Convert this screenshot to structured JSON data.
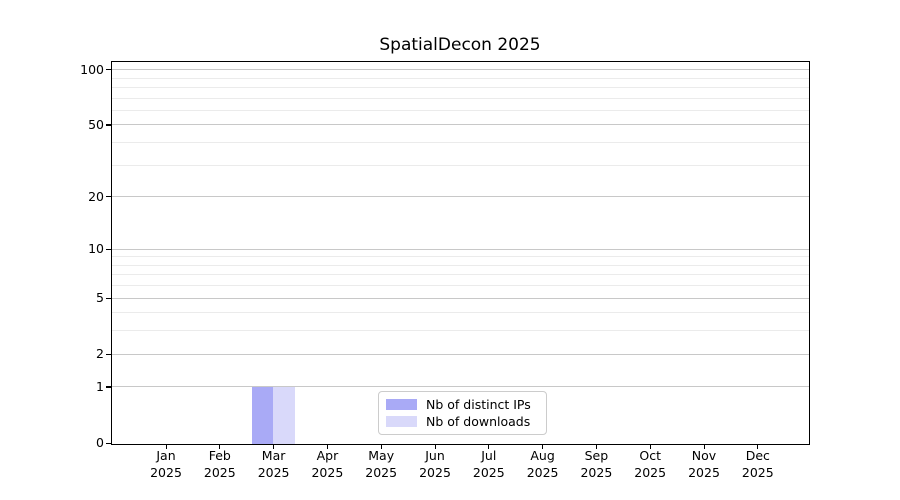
{
  "title": "SpatialDecon 2025",
  "chart_data": {
    "type": "bar",
    "title": "SpatialDecon 2025",
    "categories": [
      "Jan 2025",
      "Feb 2025",
      "Mar 2025",
      "Apr 2025",
      "May 2025",
      "Jun 2025",
      "Jul 2025",
      "Aug 2025",
      "Sep 2025",
      "Oct 2025",
      "Nov 2025",
      "Dec 2025"
    ],
    "x_tick_line1": [
      "Jan",
      "Feb",
      "Mar",
      "Apr",
      "May",
      "Jun",
      "Jul",
      "Aug",
      "Sep",
      "Oct",
      "Nov",
      "Dec"
    ],
    "x_tick_line2": "2025",
    "series": [
      {
        "name": "Nb of distinct IPs",
        "color": "#a9aaf6",
        "values": [
          0,
          0,
          1,
          0,
          0,
          0,
          0,
          0,
          0,
          0,
          0,
          0
        ]
      },
      {
        "name": "Nb of downloads",
        "color": "#d9d9fa",
        "values": [
          0,
          0,
          1,
          0,
          0,
          0,
          0,
          0,
          0,
          0,
          0,
          0
        ]
      }
    ],
    "xlabel": "",
    "ylabel": "",
    "y_axis": {
      "scale": "log10(value+1)",
      "major_ticks": [
        0,
        1,
        2,
        5,
        10,
        20,
        50,
        100
      ],
      "minor_ticks": [
        3,
        4,
        6,
        7,
        8,
        9,
        30,
        40,
        60,
        70,
        80,
        90
      ],
      "ylim": [
        0,
        110
      ]
    },
    "grid": {
      "orientation": "horizontal",
      "major_color": "#c8c8c8",
      "minor_color": "#ebebeb"
    },
    "legend": {
      "position": "lower center",
      "entries": [
        "Nb of distinct IPs",
        "Nb of downloads"
      ],
      "border_color": "#cccccc"
    },
    "colors": {
      "axis": "#000000",
      "background": "#ffffff",
      "text": "#000000"
    }
  }
}
